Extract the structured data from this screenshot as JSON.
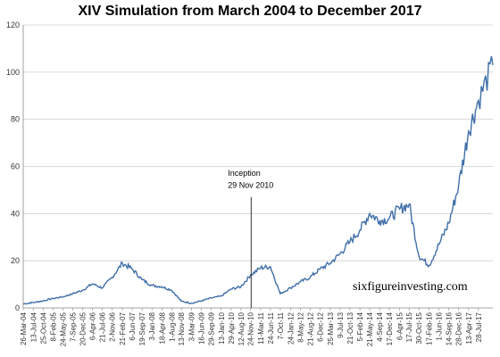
{
  "chart_data": {
    "type": "line",
    "title": "XIV Simulation from March 2004 to December 2017",
    "xlabel": "",
    "ylabel": "",
    "ylim": [
      0,
      120
    ],
    "yticks": [
      0,
      20,
      40,
      60,
      80,
      100,
      120
    ],
    "grid": "horizontal",
    "legend": "none",
    "x_ticks": [
      "26-Mar-04",
      "13-Jul-04",
      "25-Oct-04",
      "8-Feb-05",
      "24-May-05",
      "7-Sep-05",
      "20-Dec-05",
      "6-Apr-06",
      "21-Jul-06",
      "2-Nov-06",
      "21-Feb-07",
      "6-Jun-07",
      "19-Sep-07",
      "3-Jan-08",
      "18-Apr-08",
      "1-Aug-08",
      "13-Nov-08",
      "3-Mar-09",
      "16-Jun-09",
      "29-Sep-09",
      "13-Jan-10",
      "29-Apr-10",
      "12-Aug-10",
      "24-Nov-10",
      "11-Mar-11",
      "24-Jun-11",
      "7-Oct-11",
      "24-Jan-12",
      "8-May-12",
      "21-Aug-12",
      "6-Dec-12",
      "25-Mar-13",
      "9-Jul-13",
      "21-Oct-13",
      "5-Feb-14",
      "21-May-14",
      "4-Sep-14",
      "17-Dec-14",
      "6-Apr-15",
      "17-Jul-15",
      "30-Oct-15",
      "17-Feb-16",
      "1-Jun-16",
      "14-Sep-16",
      "28-Dec-16",
      "13-Apr-17",
      "28-Jul-17"
    ],
    "series": [
      {
        "color": "#3f6fa8",
        "x": [
          "2004-03-26",
          "2004-07-13",
          "2004-10-25",
          "2005-02-08",
          "2005-05-24",
          "2005-09-07",
          "2005-12-20",
          "2006-04-06",
          "2006-07-21",
          "2006-11-02",
          "2007-02-21",
          "2007-06-06",
          "2007-09-19",
          "2008-01-03",
          "2008-04-18",
          "2008-08-01",
          "2008-11-13",
          "2009-03-03",
          "2009-06-16",
          "2009-09-29",
          "2010-01-13",
          "2010-04-29",
          "2010-08-12",
          "2010-11-24",
          "2011-03-11",
          "2011-06-24",
          "2011-10-07",
          "2012-01-24",
          "2012-05-08",
          "2012-08-21",
          "2012-12-06",
          "2013-03-25",
          "2013-07-09",
          "2013-10-21",
          "2014-02-05",
          "2014-05-21",
          "2014-09-04",
          "2014-12-17",
          "2015-04-06",
          "2015-07-17",
          "2015-10-30",
          "2016-02-17",
          "2016-06-01",
          "2016-09-14",
          "2016-12-28",
          "2017-04-13",
          "2017-07-28",
          "2017-12-29"
        ],
        "values": [
          1.7,
          2.3,
          3.0,
          4.0,
          4.7,
          6.0,
          7.5,
          10.2,
          8.5,
          13.0,
          19.0,
          16.5,
          12.0,
          9.5,
          9.0,
          7.5,
          2.8,
          2.0,
          3.0,
          4.2,
          5.0,
          8.0,
          9.0,
          14.0,
          17.0,
          17.5,
          6.0,
          8.5,
          11.0,
          13.0,
          16.5,
          19.0,
          23.0,
          28.0,
          33.0,
          40.0,
          37.0,
          38.0,
          42.0,
          44.0,
          22.0,
          18.0,
          27.0,
          36.0,
          52.0,
          75.0,
          88.0,
          103.0
        ]
      }
    ],
    "annotations": [
      "Inception",
      "29 Nov 2010"
    ],
    "watermark": "sixfigureinvesting.com"
  }
}
